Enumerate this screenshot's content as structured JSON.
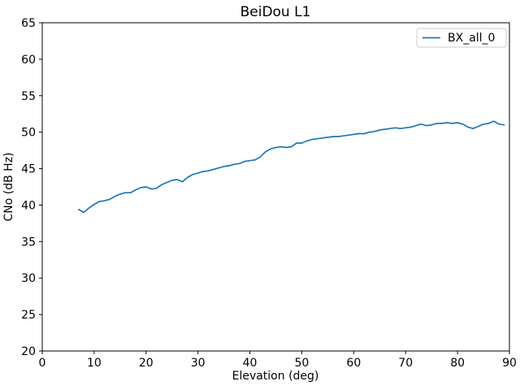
{
  "chart_data": {
    "type": "line",
    "title": "BeiDou L1",
    "xlabel": "Elevation (deg)",
    "ylabel": "CNo (dB Hz)",
    "xlim": [
      0,
      90
    ],
    "ylim": [
      20,
      65
    ],
    "xticks": [
      0,
      10,
      20,
      30,
      40,
      50,
      60,
      70,
      80,
      90
    ],
    "yticks": [
      20,
      25,
      30,
      35,
      40,
      45,
      50,
      55,
      60,
      65
    ],
    "grid": false,
    "legend": {
      "position": "upper right",
      "entries": [
        "BX_all_0"
      ]
    },
    "axis_color": "#000000",
    "background_color": "#ffffff",
    "legend_border_color": "#cccccc",
    "series": [
      {
        "name": "BX_all_0",
        "color": "#1f77b4",
        "x": [
          7,
          8,
          9,
          10,
          11,
          12,
          13,
          14,
          15,
          16,
          17,
          18,
          19,
          20,
          21,
          22,
          23,
          24,
          25,
          26,
          27,
          28,
          29,
          30,
          31,
          32,
          33,
          34,
          35,
          36,
          37,
          38,
          39,
          40,
          41,
          42,
          43,
          44,
          45,
          46,
          47,
          48,
          49,
          50,
          51,
          52,
          53,
          54,
          55,
          56,
          57,
          58,
          59,
          60,
          61,
          62,
          63,
          64,
          65,
          66,
          67,
          68,
          69,
          70,
          71,
          72,
          73,
          74,
          75,
          76,
          77,
          78,
          79,
          80,
          81,
          82,
          83,
          84,
          85,
          86,
          87,
          88,
          89
        ],
        "y": [
          39.4,
          39.0,
          39.6,
          40.1,
          40.5,
          40.6,
          40.8,
          41.2,
          41.5,
          41.7,
          41.7,
          42.1,
          42.4,
          42.5,
          42.2,
          42.3,
          42.8,
          43.1,
          43.4,
          43.5,
          43.2,
          43.8,
          44.2,
          44.4,
          44.6,
          44.7,
          44.9,
          45.1,
          45.3,
          45.4,
          45.6,
          45.7,
          46.0,
          46.1,
          46.2,
          46.6,
          47.3,
          47.7,
          47.9,
          48.0,
          47.9,
          48.0,
          48.5,
          48.5,
          48.8,
          49.0,
          49.1,
          49.2,
          49.3,
          49.4,
          49.4,
          49.5,
          49.6,
          49.7,
          49.8,
          49.8,
          50.0,
          50.1,
          50.3,
          50.4,
          50.5,
          50.6,
          50.5,
          50.6,
          50.7,
          50.9,
          51.1,
          50.9,
          51.0,
          51.2,
          51.2,
          51.3,
          51.2,
          51.3,
          51.1,
          50.7,
          50.5,
          50.8,
          51.1,
          51.2,
          51.5,
          51.1,
          51.0
        ]
      }
    ]
  }
}
